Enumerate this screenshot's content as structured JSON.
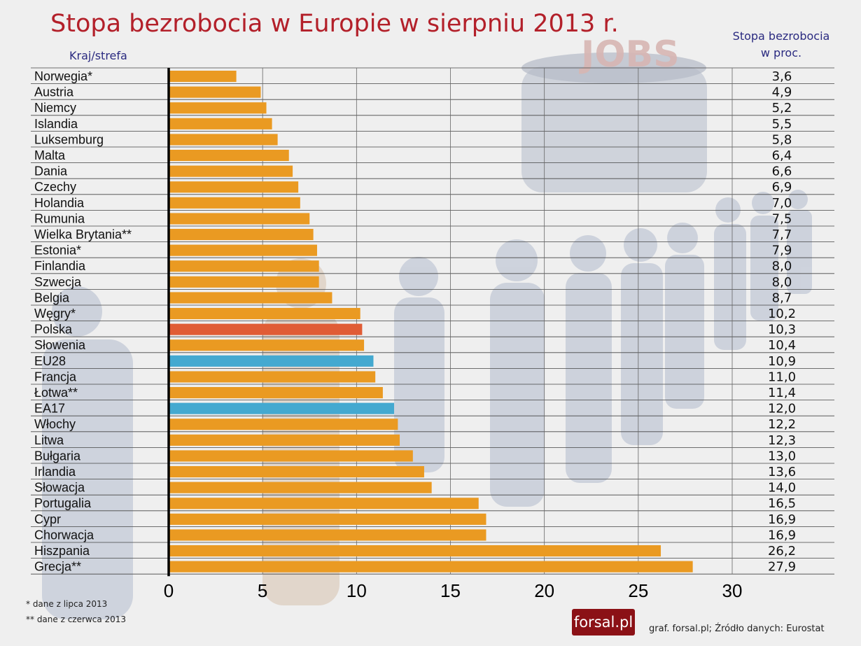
{
  "title": "Stopa bezrobocia w Europie w sierpniu 2013 r.",
  "category_header": "Kraj/strefa",
  "value_header_lines": [
    "Stopa bezrobocia",
    "w proc."
  ],
  "background_watermark": "JOBS",
  "footnotes": [
    "* dane z lipca 2013",
    "** dane z czerwca 2013"
  ],
  "logo": "forsal.pl",
  "source": "graf. forsal.pl;  Źródło danych: Eurostat",
  "colors": {
    "default_bar": "#ea9a22",
    "poland_bar": "#e05c35",
    "aggregate_bar": "#44a9d0",
    "title": "#b3202a",
    "header_text": "#2a2a80"
  },
  "chart_data": {
    "type": "bar",
    "orientation": "horizontal",
    "categories": [
      "Norwegia*",
      "Austria",
      "Niemcy",
      "Islandia",
      "Luksemburg",
      "Malta",
      "Dania",
      "Czechy",
      "Holandia",
      "Rumunia",
      "Wielka Brytania**",
      "Estonia*",
      "Finlandia",
      "Szwecja",
      "Belgia",
      "Węgry*",
      "Polska",
      "Słowenia",
      "EU28",
      "Francja",
      "Łotwa**",
      "EA17",
      "Włochy",
      "Litwa",
      "Bułgaria",
      "Irlandia",
      "Słowacja",
      "Portugalia",
      "Cypr",
      "Chorwacja",
      "Hiszpania",
      "Grecja**"
    ],
    "values": [
      3.6,
      4.9,
      5.2,
      5.5,
      5.8,
      6.4,
      6.6,
      6.9,
      7.0,
      7.5,
      7.7,
      7.9,
      8.0,
      8.0,
      8.7,
      10.2,
      10.3,
      10.4,
      10.9,
      11.0,
      11.4,
      12.0,
      12.2,
      12.3,
      13.0,
      13.6,
      14.0,
      16.5,
      16.9,
      16.9,
      26.2,
      27.9
    ],
    "value_labels": [
      "3,6",
      "4,9",
      "5,2",
      "5,5",
      "5,8",
      "6,4",
      "6,6",
      "6,9",
      "7,0",
      "7,5",
      "7,7",
      "7,9",
      "8,0",
      "8,0",
      "8,7",
      "10,2",
      "10,3",
      "10,4",
      "10,9",
      "11,0",
      "11,4",
      "12,0",
      "12,2",
      "12,3",
      "13,0",
      "13,6",
      "14,0",
      "16,5",
      "16,9",
      "16,9",
      "26,2",
      "27,9"
    ],
    "highlight": {
      "Polska": "poland_bar",
      "EU28": "aggregate_bar",
      "EA17": "aggregate_bar"
    },
    "xlim": [
      0,
      30
    ],
    "xticks": [
      0,
      5,
      10,
      15,
      20,
      25,
      30
    ],
    "grid": "vertical"
  }
}
